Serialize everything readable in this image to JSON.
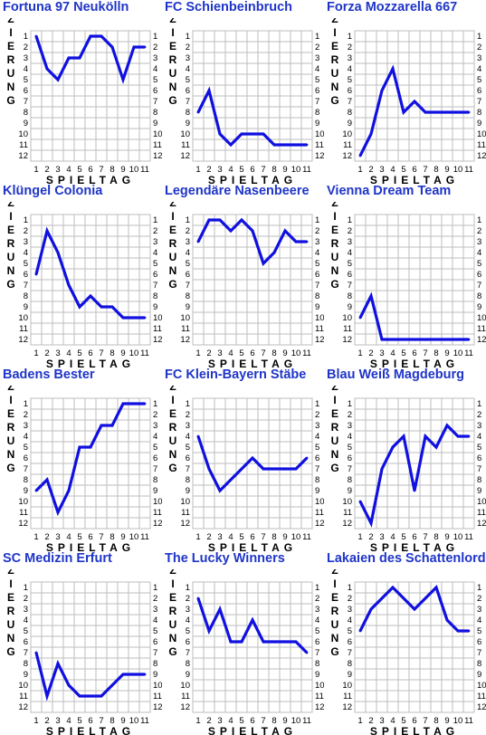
{
  "axis": {
    "ylabel": "PLAZIERUNG",
    "xlabel": "SPIELTAG",
    "x_ticks": [
      "1",
      "2",
      "3",
      "4",
      "5",
      "6",
      "7",
      "8",
      "9",
      "10",
      "11"
    ],
    "y_ticks": [
      "1",
      "2",
      "3",
      "4",
      "5",
      "6",
      "7",
      "8",
      "9",
      "10",
      "11",
      "12"
    ]
  },
  "colors": {
    "title": "#1f35c8",
    "line": "#1010e0",
    "grid": "#bdbdbd"
  },
  "chart_data": [
    {
      "type": "line",
      "title": "Fortuna 97 Neukölln",
      "xlabel": "SPIELTAG",
      "ylabel": "PLAZIERUNG",
      "xlim": [
        1,
        11
      ],
      "ylim": [
        1,
        12
      ],
      "y_inverted": true,
      "x": [
        1,
        2,
        3,
        4,
        5,
        6,
        7,
        8,
        9,
        10,
        11
      ],
      "values": [
        1,
        4,
        5,
        3,
        3,
        1,
        1,
        2,
        5,
        2,
        2
      ]
    },
    {
      "type": "line",
      "title": "FC Schienbeinbruch",
      "xlabel": "SPIELTAG",
      "ylabel": "PLAZIERUNG",
      "xlim": [
        1,
        11
      ],
      "ylim": [
        1,
        12
      ],
      "y_inverted": true,
      "x": [
        1,
        2,
        3,
        4,
        5,
        6,
        7,
        8,
        9,
        10,
        11
      ],
      "values": [
        8,
        6,
        10,
        11,
        10,
        10,
        10,
        11,
        11,
        11,
        11
      ]
    },
    {
      "type": "line",
      "title": "Forza Mozzarella 667",
      "xlabel": "SPIELTAG",
      "ylabel": "PLAZIERUNG",
      "xlim": [
        1,
        11
      ],
      "ylim": [
        1,
        12
      ],
      "y_inverted": true,
      "x": [
        1,
        2,
        3,
        4,
        5,
        6,
        7,
        8,
        9,
        10,
        11
      ],
      "values": [
        12,
        10,
        6,
        4,
        8,
        7,
        8,
        8,
        8,
        8,
        8
      ]
    },
    {
      "type": "line",
      "title": "Klüngel Colonia",
      "xlabel": "SPIELTAG",
      "ylabel": "PLAZIERUNG",
      "xlim": [
        1,
        11
      ],
      "ylim": [
        1,
        12
      ],
      "y_inverted": true,
      "x": [
        1,
        2,
        3,
        4,
        5,
        6,
        7,
        8,
        9,
        10,
        11
      ],
      "values": [
        6,
        2,
        4,
        7,
        9,
        8,
        9,
        9,
        10,
        10,
        10
      ]
    },
    {
      "type": "line",
      "title": "Legendäre Nasenbeere",
      "xlabel": "SPIELTAG",
      "ylabel": "PLAZIERUNG",
      "xlim": [
        1,
        11
      ],
      "ylim": [
        1,
        12
      ],
      "y_inverted": true,
      "x": [
        1,
        2,
        3,
        4,
        5,
        6,
        7,
        8,
        9,
        10,
        11
      ],
      "values": [
        3,
        1,
        1,
        2,
        1,
        2,
        5,
        4,
        2,
        3,
        3
      ]
    },
    {
      "type": "line",
      "title": "Vienna Dream Team",
      "xlabel": "SPIELTAG",
      "ylabel": "PLAZIERUNG",
      "xlim": [
        1,
        11
      ],
      "ylim": [
        1,
        12
      ],
      "y_inverted": true,
      "x": [
        1,
        2,
        3,
        4,
        5,
        6,
        7,
        8,
        9,
        10,
        11
      ],
      "values": [
        10,
        8,
        12,
        12,
        12,
        12,
        12,
        12,
        12,
        12,
        12
      ]
    },
    {
      "type": "line",
      "title": "Badens Bester",
      "xlabel": "SPIELTAG",
      "ylabel": "PLAZIERUNG",
      "xlim": [
        1,
        11
      ],
      "ylim": [
        1,
        12
      ],
      "y_inverted": true,
      "x": [
        1,
        2,
        3,
        4,
        5,
        6,
        7,
        8,
        9,
        10,
        11
      ],
      "values": [
        9,
        8,
        11,
        9,
        5,
        5,
        3,
        3,
        1,
        1,
        1
      ]
    },
    {
      "type": "line",
      "title": "FC Klein-Bayern Stäbe",
      "xlabel": "SPIELTAG",
      "ylabel": "PLAZIERUNG",
      "xlim": [
        1,
        11
      ],
      "ylim": [
        1,
        12
      ],
      "y_inverted": true,
      "x": [
        1,
        2,
        3,
        4,
        5,
        6,
        7,
        8,
        9,
        10,
        11
      ],
      "values": [
        4,
        7,
        9,
        8,
        7,
        6,
        7,
        7,
        7,
        7,
        6
      ]
    },
    {
      "type": "line",
      "title": "Blau Weiß Magdeburg",
      "xlabel": "SPIELTAG",
      "ylabel": "PLAZIERUNG",
      "xlim": [
        1,
        11
      ],
      "ylim": [
        1,
        12
      ],
      "y_inverted": true,
      "x": [
        1,
        2,
        3,
        4,
        5,
        6,
        7,
        8,
        9,
        10,
        11
      ],
      "values": [
        10,
        12,
        7,
        5,
        4,
        9,
        4,
        5,
        3,
        4,
        4
      ]
    },
    {
      "type": "line",
      "title": "SC Medizin Erfurt",
      "xlabel": "SPIELTAG",
      "ylabel": "PLAZIERUNG",
      "xlim": [
        1,
        11
      ],
      "ylim": [
        1,
        12
      ],
      "y_inverted": true,
      "x": [
        1,
        2,
        3,
        4,
        5,
        6,
        7,
        8,
        9,
        10,
        11
      ],
      "values": [
        7,
        11,
        8,
        10,
        11,
        11,
        11,
        10,
        9,
        9,
        9
      ]
    },
    {
      "type": "line",
      "title": "The Lucky Winners",
      "xlabel": "SPIELTAG",
      "ylabel": "PLAZIERUNG",
      "xlim": [
        1,
        11
      ],
      "ylim": [
        1,
        12
      ],
      "y_inverted": true,
      "x": [
        1,
        2,
        3,
        4,
        5,
        6,
        7,
        8,
        9,
        10,
        11
      ],
      "values": [
        2,
        5,
        3,
        6,
        6,
        4,
        6,
        6,
        6,
        6,
        7
      ]
    },
    {
      "type": "line",
      "title": "Lakaien des Schattenlords",
      "xlabel": "SPIELTAG",
      "ylabel": "PLAZIERUNG",
      "xlim": [
        1,
        11
      ],
      "ylim": [
        1,
        12
      ],
      "y_inverted": true,
      "x": [
        1,
        2,
        3,
        4,
        5,
        6,
        7,
        8,
        9,
        10,
        11
      ],
      "values": [
        5,
        3,
        2,
        1,
        2,
        3,
        2,
        1,
        4,
        5,
        5
      ]
    }
  ]
}
